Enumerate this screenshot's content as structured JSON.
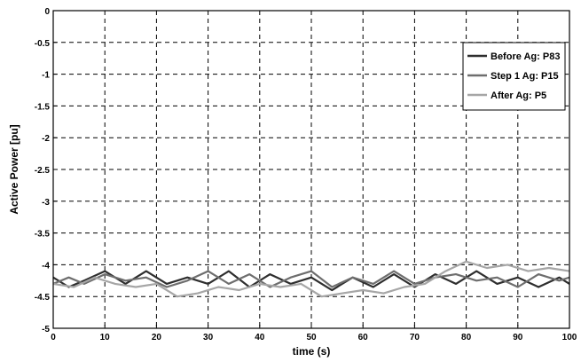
{
  "chart_data": {
    "type": "line",
    "xlabel": "time (s)",
    "ylabel": "Active Power [pu]",
    "xlim": [
      0,
      100
    ],
    "ylim": [
      -5,
      0
    ],
    "xticks": [
      0,
      10,
      20,
      30,
      40,
      50,
      60,
      70,
      80,
      90,
      100
    ],
    "xtick_labels": [
      "0",
      "10",
      "20",
      "30",
      "40",
      "50",
      "60",
      "70",
      "80",
      "90",
      "100"
    ],
    "yticks": [
      0,
      -0.5,
      -1,
      -1.5,
      -2,
      -2.5,
      -3,
      -3.5,
      -4,
      -4.5,
      -5
    ],
    "ytick_labels": [
      "0",
      "-0.5",
      "-1",
      "-1.5",
      "-2",
      "-2.5",
      "-3",
      "-3.5",
      "-4",
      "-4.5",
      "-5"
    ],
    "grid": true,
    "legend_position": "top-right",
    "series": [
      {
        "name": "Before Ag: P83",
        "color": "#2e2e2e",
        "x": [
          0,
          3,
          6,
          10,
          14,
          18,
          22,
          26,
          30,
          34,
          38,
          42,
          46,
          50,
          54,
          58,
          62,
          66,
          70,
          74,
          78,
          82,
          86,
          90,
          94,
          98,
          100
        ],
        "y": [
          -4.2,
          -4.35,
          -4.25,
          -4.1,
          -4.3,
          -4.1,
          -4.3,
          -4.2,
          -4.3,
          -4.1,
          -4.35,
          -4.15,
          -4.3,
          -4.2,
          -4.4,
          -4.2,
          -4.35,
          -4.15,
          -4.35,
          -4.15,
          -4.3,
          -4.1,
          -4.3,
          -4.2,
          -4.35,
          -4.2,
          -4.3
        ]
      },
      {
        "name": "Step 1 Ag: P15",
        "color": "#6e6e6e",
        "x": [
          0,
          3,
          6,
          10,
          14,
          18,
          22,
          26,
          30,
          34,
          38,
          42,
          46,
          50,
          54,
          58,
          62,
          66,
          70,
          74,
          78,
          82,
          86,
          90,
          94,
          98,
          100
        ],
        "y": [
          -4.3,
          -4.2,
          -4.3,
          -4.15,
          -4.25,
          -4.2,
          -4.35,
          -4.25,
          -4.1,
          -4.3,
          -4.15,
          -4.35,
          -4.2,
          -4.1,
          -4.35,
          -4.2,
          -4.3,
          -4.1,
          -4.3,
          -4.2,
          -4.15,
          -4.25,
          -4.2,
          -4.35,
          -4.15,
          -4.25,
          -4.2
        ]
      },
      {
        "name": "After Ag: P5",
        "color": "#a6a6a6",
        "x": [
          0,
          4,
          8,
          12,
          16,
          20,
          24,
          28,
          32,
          36,
          40,
          44,
          48,
          52,
          56,
          60,
          64,
          68,
          72,
          76,
          80,
          84,
          88,
          92,
          96,
          100
        ],
        "y": [
          -4.3,
          -4.35,
          -4.2,
          -4.3,
          -4.35,
          -4.3,
          -4.5,
          -4.45,
          -4.35,
          -4.4,
          -4.3,
          -4.35,
          -4.3,
          -4.5,
          -4.45,
          -4.4,
          -4.45,
          -4.35,
          -4.3,
          -4.1,
          -3.95,
          -4.05,
          -4.0,
          -4.1,
          -4.05,
          -4.1
        ]
      }
    ]
  }
}
